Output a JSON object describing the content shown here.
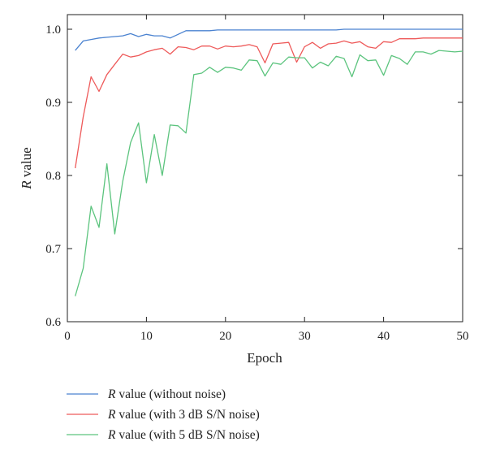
{
  "chart_data": {
    "type": "line",
    "xlabel": "Epoch",
    "ylabel_italic": "R",
    "ylabel_rest": " value",
    "xlim": [
      0,
      50
    ],
    "ylim": [
      0.6,
      1.02
    ],
    "xticks": [
      0,
      10,
      20,
      30,
      40,
      50
    ],
    "yticks": [
      0.6,
      0.7,
      0.8,
      0.9,
      1.0
    ],
    "ytick_labels": [
      "0.6",
      "0.7",
      "0.8",
      "0.9",
      "1.0"
    ],
    "legend_position": "below",
    "series": [
      {
        "name_italic": "R",
        "name_rest": " value (without noise)",
        "color": "#4a82d0",
        "x": [
          1,
          2,
          3,
          4,
          5,
          6,
          7,
          8,
          9,
          10,
          11,
          12,
          13,
          14,
          15,
          16,
          17,
          18,
          19,
          20,
          21,
          22,
          23,
          24,
          25,
          26,
          27,
          28,
          29,
          30,
          31,
          32,
          33,
          34,
          35,
          36,
          37,
          38,
          39,
          40,
          41,
          42,
          43,
          44,
          45,
          46,
          47,
          48,
          49,
          50
        ],
        "y": [
          0.971,
          0.984,
          0.986,
          0.988,
          0.989,
          0.99,
          0.991,
          0.994,
          0.99,
          0.993,
          0.991,
          0.991,
          0.988,
          0.993,
          0.998,
          0.998,
          0.998,
          0.998,
          0.999,
          0.999,
          0.999,
          0.999,
          0.999,
          0.999,
          0.999,
          0.999,
          0.999,
          0.999,
          0.999,
          0.999,
          0.999,
          0.999,
          0.999,
          0.999,
          1.0,
          1.0,
          1.0,
          1.0,
          1.0,
          1.0,
          1.0,
          1.0,
          1.0,
          1.0,
          1.0,
          1.0,
          1.0,
          1.0,
          1.0,
          1.0
        ]
      },
      {
        "name_italic": "R",
        "name_rest": " value (with 3 dB S/N noise)",
        "color": "#ee5a5a",
        "x": [
          1,
          2,
          3,
          4,
          5,
          6,
          7,
          8,
          9,
          10,
          11,
          12,
          13,
          14,
          15,
          16,
          17,
          18,
          19,
          20,
          21,
          22,
          23,
          24,
          25,
          26,
          27,
          28,
          29,
          30,
          31,
          32,
          33,
          34,
          35,
          36,
          37,
          38,
          39,
          40,
          41,
          42,
          43,
          44,
          45,
          46,
          47,
          48,
          49,
          50
        ],
        "y": [
          0.81,
          0.88,
          0.935,
          0.915,
          0.938,
          0.952,
          0.966,
          0.962,
          0.964,
          0.969,
          0.972,
          0.974,
          0.966,
          0.976,
          0.975,
          0.972,
          0.977,
          0.977,
          0.973,
          0.977,
          0.976,
          0.977,
          0.979,
          0.976,
          0.954,
          0.98,
          0.981,
          0.982,
          0.955,
          0.976,
          0.982,
          0.974,
          0.98,
          0.981,
          0.984,
          0.981,
          0.983,
          0.976,
          0.974,
          0.983,
          0.982,
          0.987,
          0.987,
          0.987,
          0.988,
          0.988,
          0.988,
          0.988,
          0.988,
          0.988
        ]
      },
      {
        "name_italic": "R",
        "name_rest": " value (with 5 dB S/N noise)",
        "color": "#5cc47e",
        "x": [
          1,
          2,
          3,
          4,
          5,
          6,
          7,
          8,
          9,
          10,
          11,
          12,
          13,
          14,
          15,
          16,
          17,
          18,
          19,
          20,
          21,
          22,
          23,
          24,
          25,
          26,
          27,
          28,
          29,
          30,
          31,
          32,
          33,
          34,
          35,
          36,
          37,
          38,
          39,
          40,
          41,
          42,
          43,
          44,
          45,
          46,
          47,
          48,
          49,
          50
        ],
        "y": [
          0.635,
          0.673,
          0.758,
          0.729,
          0.816,
          0.72,
          0.792,
          0.845,
          0.872,
          0.79,
          0.856,
          0.8,
          0.869,
          0.868,
          0.858,
          0.938,
          0.94,
          0.948,
          0.941,
          0.948,
          0.947,
          0.944,
          0.958,
          0.957,
          0.936,
          0.954,
          0.952,
          0.962,
          0.961,
          0.961,
          0.947,
          0.955,
          0.95,
          0.963,
          0.96,
          0.935,
          0.965,
          0.957,
          0.958,
          0.937,
          0.964,
          0.96,
          0.952,
          0.969,
          0.969,
          0.966,
          0.971,
          0.97,
          0.969,
          0.97
        ]
      }
    ]
  }
}
